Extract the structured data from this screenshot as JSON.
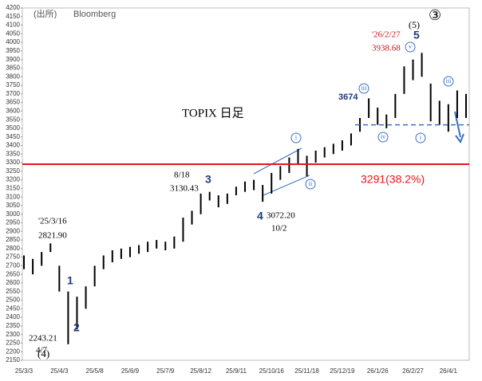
{
  "chart_data": {
    "type": "range-bar",
    "title": "TOPIX 日足",
    "source": [
      "(出所)",
      "Bloomberg"
    ],
    "categories": [
      "25/3/3",
      null,
      null,
      null,
      "25/4/3",
      null,
      null,
      null,
      "25/5/8",
      null,
      null,
      null,
      "25/6/9",
      null,
      null,
      null,
      "25/7/9",
      null,
      null,
      null,
      "25/8/12",
      null,
      null,
      null,
      "25/9/11",
      null,
      null,
      null,
      "25/10/16",
      null,
      null,
      null,
      "25/11/18",
      null,
      null,
      null,
      "25/12/19",
      null,
      null,
      null,
      "26/1/26",
      null,
      null,
      null,
      "26/2/27",
      null,
      null,
      null,
      "26/4/1",
      null,
      null
    ],
    "series": [
      {
        "name": "high",
        "color": "#000000",
        "values": [
          2760,
          2740,
          2780,
          2830,
          2700,
          2550,
          2520,
          2580,
          2700,
          2760,
          2790,
          2800,
          2810,
          2820,
          2840,
          2850,
          2840,
          2870,
          2980,
          3020,
          3120,
          3130,
          3110,
          3120,
          3160,
          3190,
          3200,
          3170,
          3240,
          3280,
          3330,
          3380,
          3340,
          3370,
          3390,
          3410,
          3430,
          3470,
          3560,
          3674,
          3620,
          3580,
          3700,
          3860,
          3900,
          3938.68,
          3760,
          3660,
          3640,
          3720,
          3700
        ]
      },
      {
        "name": "low",
        "color": "#000000",
        "values": [
          2680,
          2650,
          2700,
          2780,
          2550,
          2243.21,
          2330,
          2450,
          2580,
          2680,
          2720,
          2740,
          2750,
          2770,
          2780,
          2800,
          2790,
          2800,
          2840,
          2940,
          3000,
          3080,
          3040,
          3060,
          3110,
          3130,
          3140,
          3072.2,
          3120,
          3200,
          3240,
          3290,
          3220,
          3300,
          3330,
          3350,
          3370,
          3400,
          3480,
          3560,
          3520,
          3500,
          3560,
          3700,
          3780,
          3800,
          3540,
          3520,
          3480,
          3560,
          3560
        ]
      }
    ],
    "ylim": [
      2150,
      4200
    ],
    "yticks": [
      2150,
      2200,
      2250,
      2300,
      2350,
      2400,
      2450,
      2500,
      2550,
      2600,
      2650,
      2700,
      2750,
      2800,
      2850,
      2900,
      2950,
      3000,
      3050,
      3100,
      3150,
      3200,
      3250,
      3300,
      3350,
      3400,
      3450,
      3500,
      3550,
      3600,
      3650,
      3700,
      3750,
      3800,
      3850,
      3900,
      3950,
      4000,
      4050,
      4100,
      4150,
      4200
    ],
    "hlines": [
      {
        "value": 3291,
        "label": "3291(38.2%)",
        "color": "#e8141b",
        "style": "solid"
      },
      {
        "value": 3520,
        "color": "#3a6fc4",
        "style": "dashed"
      }
    ],
    "annotations": [
      "'25/3/16",
      "2821.90",
      "2243.21",
      "4/7",
      "(4)",
      "1",
      "2",
      "8/18",
      "3130.43",
      "3",
      "4",
      "3072.20",
      "10/2",
      "3674",
      "'26/2/27",
      "3938.68",
      "(5)",
      "5",
      "③",
      "i",
      "ii",
      "iii",
      "iv",
      "v",
      "i",
      "iii"
    ]
  }
}
